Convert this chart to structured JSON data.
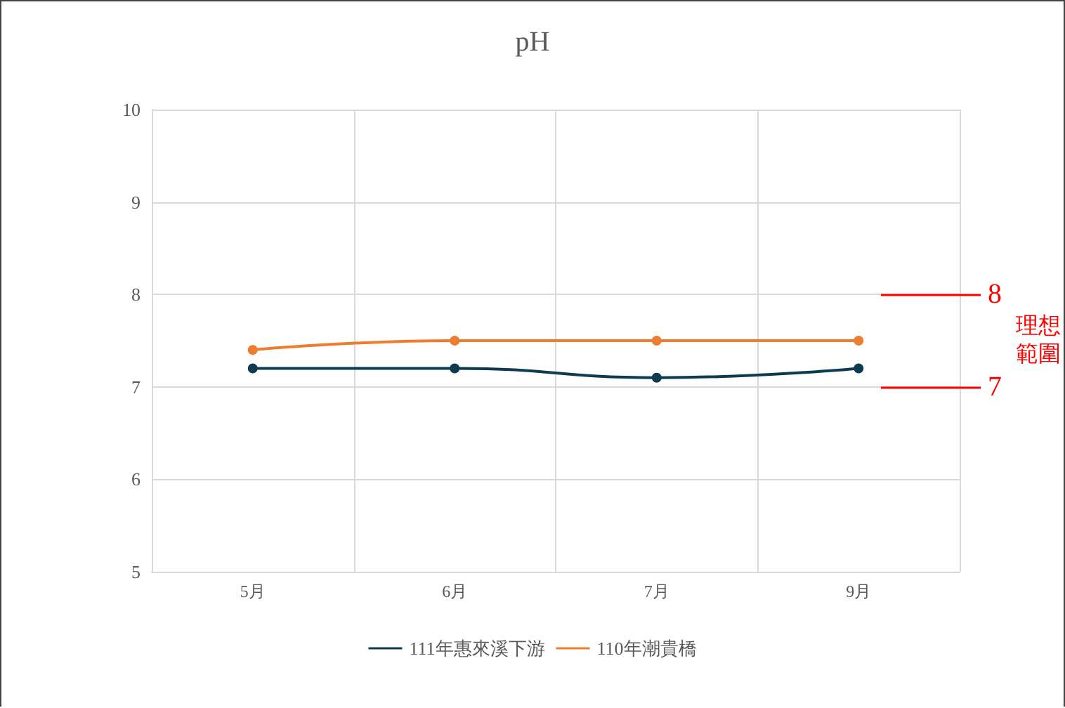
{
  "chart_data": {
    "type": "line",
    "title": "pH",
    "categories": [
      "5月",
      "6月",
      "7月",
      "9月"
    ],
    "series": [
      {
        "name": "111年惠來溪下游",
        "color": "#0e3b4f",
        "values": [
          7.2,
          7.2,
          7.1,
          7.2
        ]
      },
      {
        "name": "110年潮貴橋",
        "color": "#ed7d31",
        "values": [
          7.4,
          7.5,
          7.5,
          7.5
        ]
      }
    ],
    "ylim": [
      5,
      10
    ],
    "yticks": [
      5,
      6,
      7,
      8,
      9,
      10
    ],
    "grid": true,
    "legend": "bottom",
    "marker": "circle",
    "line_style": "solid",
    "ref_lines": [
      {
        "axis": "y",
        "value": 8,
        "label": "8",
        "color": "#ff0000"
      },
      {
        "axis": "y",
        "value": 7,
        "label": "7",
        "color": "#ff0000"
      }
    ],
    "annotations": [
      "理想範圍"
    ]
  }
}
